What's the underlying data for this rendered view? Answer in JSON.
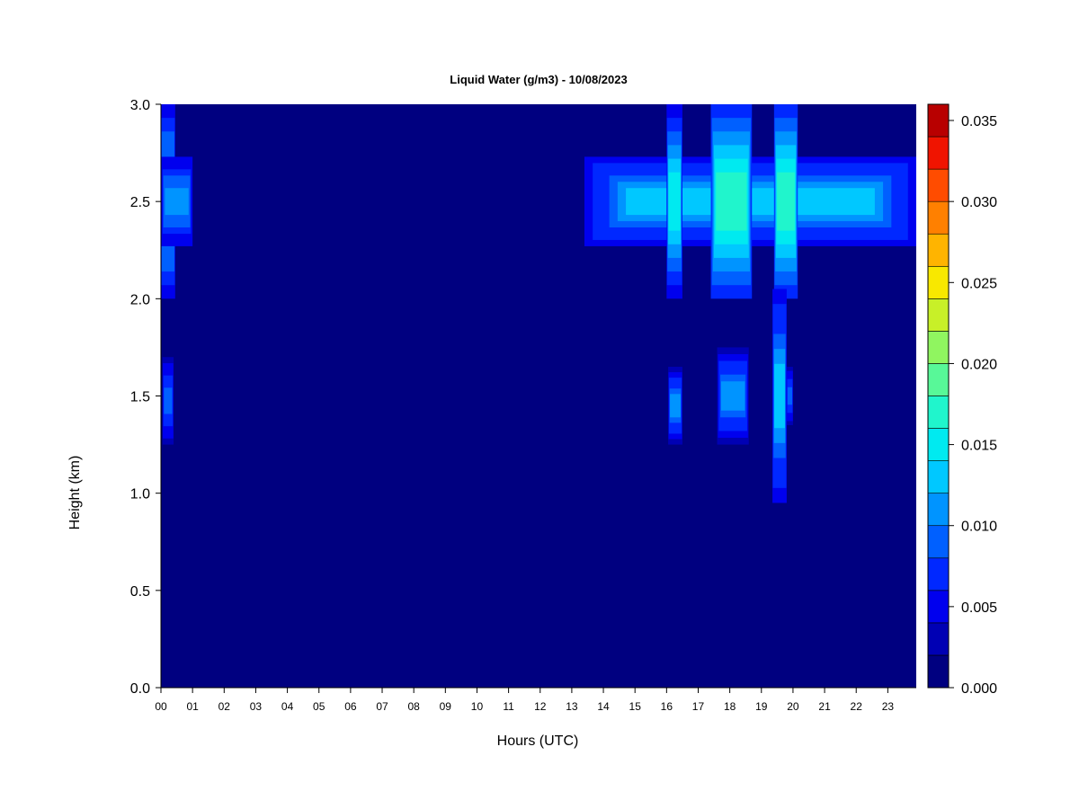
{
  "chart_data": {
    "type": "heatmap",
    "title": "Liquid Water (g/m3) - 10/08/2023",
    "xlabel": "Hours (UTC)",
    "ylabel": "Height (km)",
    "xlim": [
      0,
      23.9
    ],
    "ylim": [
      0,
      3.0
    ],
    "x_ticks": [
      "00",
      "01",
      "02",
      "03",
      "04",
      "05",
      "06",
      "07",
      "08",
      "09",
      "10",
      "11",
      "12",
      "13",
      "14",
      "15",
      "16",
      "17",
      "18",
      "19",
      "20",
      "21",
      "22",
      "23"
    ],
    "y_ticks": [
      "0.0",
      "0.5",
      "1.0",
      "1.5",
      "2.0",
      "2.5",
      "3.0"
    ],
    "grid": false,
    "colorbar": {
      "levels": [
        0.0,
        0.002,
        0.004,
        0.006,
        0.008,
        0.01,
        0.012,
        0.014,
        0.016,
        0.018,
        0.02,
        0.022,
        0.024,
        0.026,
        0.028,
        0.03,
        0.032,
        0.034,
        0.036
      ],
      "tick_labels": [
        "0.000",
        "0.005",
        "0.010",
        "0.015",
        "0.020",
        "0.025",
        "0.030",
        "0.035"
      ],
      "tick_values": [
        0.0,
        0.005,
        0.01,
        0.015,
        0.02,
        0.025,
        0.03,
        0.035
      ],
      "colors": [
        "#000080",
        "#0000B4",
        "#0000EE",
        "#0028FF",
        "#0060FF",
        "#0094FF",
        "#00C8FF",
        "#00EAF0",
        "#20F5CC",
        "#58F898",
        "#90F560",
        "#C8F028",
        "#F8E800",
        "#FFB400",
        "#FF8000",
        "#FF4C00",
        "#F01400",
        "#B80000",
        "#800000"
      ]
    },
    "background_value": 0.0,
    "features": [
      {
        "x_start": 0.0,
        "x_end": 0.45,
        "y_start": 2.0,
        "y_end": 3.0,
        "peak": 0.013
      },
      {
        "x_start": 0.0,
        "x_end": 1.0,
        "y_start": 2.27,
        "y_end": 2.73,
        "peak": 0.011
      },
      {
        "x_start": 0.05,
        "x_end": 0.4,
        "y_start": 1.25,
        "y_end": 1.7,
        "peak": 0.009
      },
      {
        "x_start": 13.4,
        "x_end": 23.9,
        "y_start": 2.27,
        "y_end": 2.73,
        "peak": 0.012
      },
      {
        "x_start": 16.0,
        "x_end": 16.5,
        "y_start": 2.0,
        "y_end": 3.0,
        "peak": 0.015
      },
      {
        "x_start": 17.4,
        "x_end": 18.7,
        "y_start": 2.0,
        "y_end": 3.0,
        "peak": 0.017
      },
      {
        "x_start": 19.4,
        "x_end": 20.15,
        "y_start": 2.0,
        "y_end": 3.0,
        "peak": 0.016
      },
      {
        "x_start": 16.05,
        "x_end": 16.5,
        "y_start": 1.25,
        "y_end": 1.65,
        "peak": 0.01
      },
      {
        "x_start": 17.6,
        "x_end": 18.6,
        "y_start": 1.25,
        "y_end": 1.75,
        "peak": 0.01
      },
      {
        "x_start": 19.35,
        "x_end": 19.8,
        "y_start": 0.95,
        "y_end": 2.05,
        "peak": 0.012
      },
      {
        "x_start": 19.8,
        "x_end": 20.0,
        "y_start": 1.35,
        "y_end": 1.65,
        "peak": 0.009
      }
    ]
  }
}
